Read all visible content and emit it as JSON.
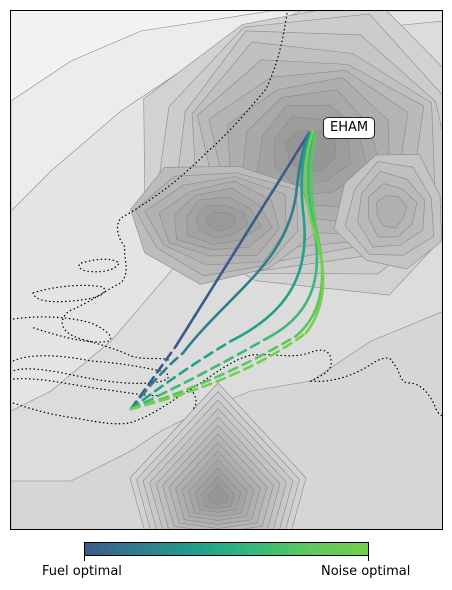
{
  "map": {
    "airport_label": "EHAM",
    "colors": {
      "background": "#f2f2f2",
      "contour_line": "#8a8a8a",
      "coastline": "#000000",
      "fuel_optimal": "#3b5b8c",
      "noise_optimal": "#74d04a"
    }
  },
  "colorbar": {
    "left_label": "Fuel optimal",
    "right_label": "Noise optimal"
  }
}
